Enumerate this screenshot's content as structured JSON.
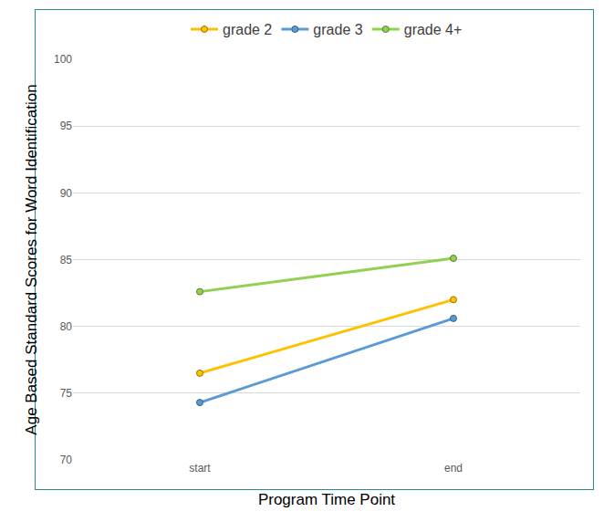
{
  "chart_data": {
    "type": "line",
    "x_label": "Program Time Point",
    "y_label": "Age Based Standard Scores for Word Identification",
    "categories": [
      "start",
      "end"
    ],
    "series": [
      {
        "name": "grade 2",
        "color": "#ffc000",
        "values": [
          76.5,
          82.0
        ]
      },
      {
        "name": "grade 3",
        "color": "#5b9bd5",
        "values": [
          74.3,
          80.6
        ]
      },
      {
        "name": "grade 4+",
        "color": "#92d050",
        "values": [
          82.6,
          85.1
        ]
      }
    ],
    "ylim": [
      70,
      100
    ],
    "yticks": [
      70,
      75,
      80,
      85,
      90,
      95,
      100
    ],
    "grid": true,
    "legend": "top",
    "marker": "circle"
  }
}
